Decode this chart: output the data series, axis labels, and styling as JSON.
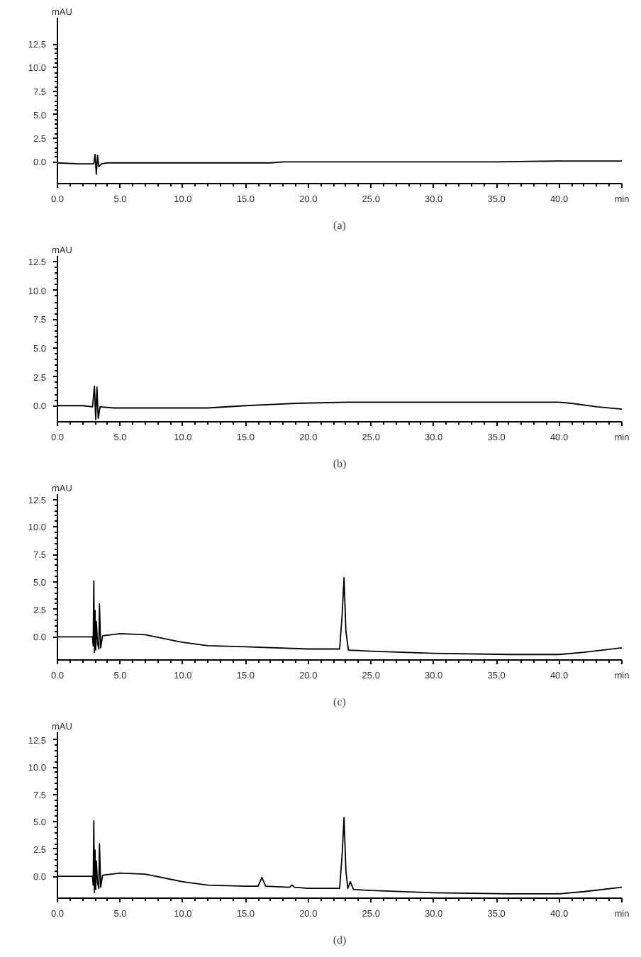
{
  "chart_data": [
    {
      "type": "line",
      "title": "(a)",
      "ylabel": "mAU",
      "xlim": [
        0,
        45
      ],
      "ylim": [
        -2.3,
        15.3
      ],
      "grid": false,
      "xticks": [
        {
          "value": 0,
          "label": "0.0"
        },
        {
          "value": 5,
          "label": "5.0"
        },
        {
          "value": 10,
          "label": "10.0"
        },
        {
          "value": 15,
          "label": "15.0"
        },
        {
          "value": 20,
          "label": "20.0"
        },
        {
          "value": 25,
          "label": "25.0"
        },
        {
          "value": 30,
          "label": "30.0"
        },
        {
          "value": 35,
          "label": "35.0"
        },
        {
          "value": 40,
          "label": "40.0"
        },
        {
          "value": 45,
          "label": "min"
        }
      ],
      "yticks": [
        {
          "value": 0,
          "label": "0.0"
        },
        {
          "value": 2.5,
          "label": "2.5"
        },
        {
          "value": 5,
          "label": "5.0"
        },
        {
          "value": 7.5,
          "label": "7.5"
        },
        {
          "value": 10,
          "label": "10.0"
        },
        {
          "value": 12.5,
          "label": "12.5"
        }
      ],
      "series": [
        {
          "color": "#000000",
          "x": [
            0,
            1.7,
            2.9,
            3.0,
            3.1,
            3.2,
            3.3,
            3.5,
            4.0,
            5,
            10,
            15,
            17,
            18,
            25,
            32,
            35,
            40,
            45
          ],
          "values": [
            -0.1,
            -0.2,
            -0.2,
            0.8,
            -1.3,
            0.7,
            -0.5,
            -0.2,
            -0.1,
            -0.1,
            -0.1,
            -0.1,
            -0.1,
            0,
            0,
            0,
            0,
            0.1,
            0.1
          ]
        }
      ]
    },
    {
      "type": "line",
      "title": "(b)",
      "ylabel": "mAU",
      "xlim": [
        0,
        45
      ],
      "ylim": [
        -1.4,
        13.0
      ],
      "grid": false,
      "xticks": [
        {
          "value": 0,
          "label": "0.0"
        },
        {
          "value": 5,
          "label": "5.0"
        },
        {
          "value": 10,
          "label": "10.0"
        },
        {
          "value": 15,
          "label": "15.0"
        },
        {
          "value": 20,
          "label": "20.0"
        },
        {
          "value": 25,
          "label": "25.0"
        },
        {
          "value": 30,
          "label": "30.0"
        },
        {
          "value": 35,
          "label": "35.0"
        },
        {
          "value": 40,
          "label": "40.0"
        },
        {
          "value": 45,
          "label": "min"
        }
      ],
      "yticks": [
        {
          "value": 0,
          "label": "0.0"
        },
        {
          "value": 2.5,
          "label": "2.5"
        },
        {
          "value": 5,
          "label": "5.0"
        },
        {
          "value": 7.5,
          "label": "7.5"
        },
        {
          "value": 10,
          "label": "10.0"
        },
        {
          "value": 12.5,
          "label": "12.5"
        }
      ],
      "series": [
        {
          "color": "#000000",
          "x": [
            0,
            2,
            2.8,
            2.95,
            3.05,
            3.15,
            3.25,
            3.4,
            4.5,
            8,
            12,
            15,
            17,
            19,
            23,
            30,
            40,
            41,
            43,
            45
          ],
          "values": [
            0,
            0,
            -0.1,
            1.7,
            -1.2,
            1.6,
            -1.1,
            -0.1,
            -0.2,
            -0.2,
            -0.2,
            0,
            0.1,
            0.2,
            0.3,
            0.3,
            0.3,
            0.2,
            -0.1,
            -0.3
          ]
        }
      ]
    },
    {
      "type": "line",
      "title": "(c)",
      "ylabel": "mAU",
      "xlim": [
        0,
        45
      ],
      "ylim": [
        -2.1,
        13.0
      ],
      "grid": false,
      "xticks": [
        {
          "value": 0,
          "label": "0.0"
        },
        {
          "value": 5,
          "label": "5.0"
        },
        {
          "value": 10,
          "label": "10.0"
        },
        {
          "value": 15,
          "label": "15.0"
        },
        {
          "value": 20,
          "label": "20.0"
        },
        {
          "value": 25,
          "label": "25.0"
        },
        {
          "value": 30,
          "label": "30.0"
        },
        {
          "value": 35,
          "label": "35.0"
        },
        {
          "value": 40,
          "label": "40.0"
        },
        {
          "value": 45,
          "label": "min"
        }
      ],
      "yticks": [
        {
          "value": 0,
          "label": "0.0"
        },
        {
          "value": 2.5,
          "label": "2.5"
        },
        {
          "value": 5,
          "label": "5.0"
        },
        {
          "value": 7.5,
          "label": "7.5"
        },
        {
          "value": 10,
          "label": "10.0"
        },
        {
          "value": 12.5,
          "label": "12.5"
        }
      ],
      "series": [
        {
          "color": "#000000",
          "x": [
            0,
            2.8,
            2.85,
            2.9,
            2.95,
            3.0,
            3.05,
            3.1,
            3.2,
            3.3,
            3.35,
            3.45,
            3.6,
            5,
            7,
            10,
            12,
            15,
            20,
            22.5,
            22.7,
            22.85,
            23.0,
            23.2,
            25,
            30,
            36,
            40,
            42,
            45
          ],
          "values": [
            0,
            0,
            -0.8,
            5.1,
            -1.4,
            2.4,
            -1.2,
            1.4,
            -0.6,
            -1.1,
            3.0,
            -1.0,
            0.1,
            0.3,
            0.2,
            -0.5,
            -0.8,
            -0.9,
            -1.1,
            -1.1,
            2.0,
            5.4,
            0.5,
            -1.2,
            -1.3,
            -1.5,
            -1.6,
            -1.6,
            -1.4,
            -1.0
          ]
        }
      ]
    },
    {
      "type": "line",
      "title": "(d)",
      "ylabel": "mAU",
      "xlim": [
        0,
        45
      ],
      "ylim": [
        -2.0,
        13.2
      ],
      "grid": false,
      "xticks": [
        {
          "value": 0,
          "label": "0.0"
        },
        {
          "value": 5,
          "label": "5.0"
        },
        {
          "value": 10,
          "label": "10.0"
        },
        {
          "value": 15,
          "label": "15.0"
        },
        {
          "value": 20,
          "label": "20.0"
        },
        {
          "value": 25,
          "label": "25.0"
        },
        {
          "value": 30,
          "label": "30.0"
        },
        {
          "value": 35,
          "label": "35.0"
        },
        {
          "value": 40,
          "label": "40.0"
        },
        {
          "value": 45,
          "label": "min"
        }
      ],
      "yticks": [
        {
          "value": 0,
          "label": "0.0"
        },
        {
          "value": 2.5,
          "label": "2.5"
        },
        {
          "value": 5,
          "label": "5.0"
        },
        {
          "value": 7.5,
          "label": "7.5"
        },
        {
          "value": 10,
          "label": "10.0"
        },
        {
          "value": 12.5,
          "label": "12.5"
        }
      ],
      "series": [
        {
          "color": "#000000",
          "x": [
            0,
            2.8,
            2.85,
            2.9,
            2.95,
            3.0,
            3.05,
            3.1,
            3.2,
            3.3,
            3.35,
            3.45,
            3.6,
            5,
            7,
            10,
            12,
            15,
            16.0,
            16.3,
            16.6,
            18.5,
            18.7,
            18.9,
            20,
            22.5,
            22.7,
            22.85,
            23.0,
            23.15,
            23.35,
            23.6,
            25,
            30,
            36,
            40,
            42,
            45
          ],
          "values": [
            0,
            0,
            -0.8,
            5.1,
            -1.5,
            2.4,
            -1.2,
            1.4,
            -0.6,
            -1.1,
            3.0,
            -1.0,
            0.1,
            0.3,
            0.2,
            -0.5,
            -0.8,
            -0.9,
            -0.9,
            -0.1,
            -0.9,
            -1.0,
            -0.8,
            -1.0,
            -1.1,
            -1.1,
            2.0,
            5.4,
            0.5,
            -1.1,
            -0.5,
            -1.2,
            -1.3,
            -1.5,
            -1.6,
            -1.6,
            -1.4,
            -1.0
          ]
        }
      ]
    }
  ]
}
